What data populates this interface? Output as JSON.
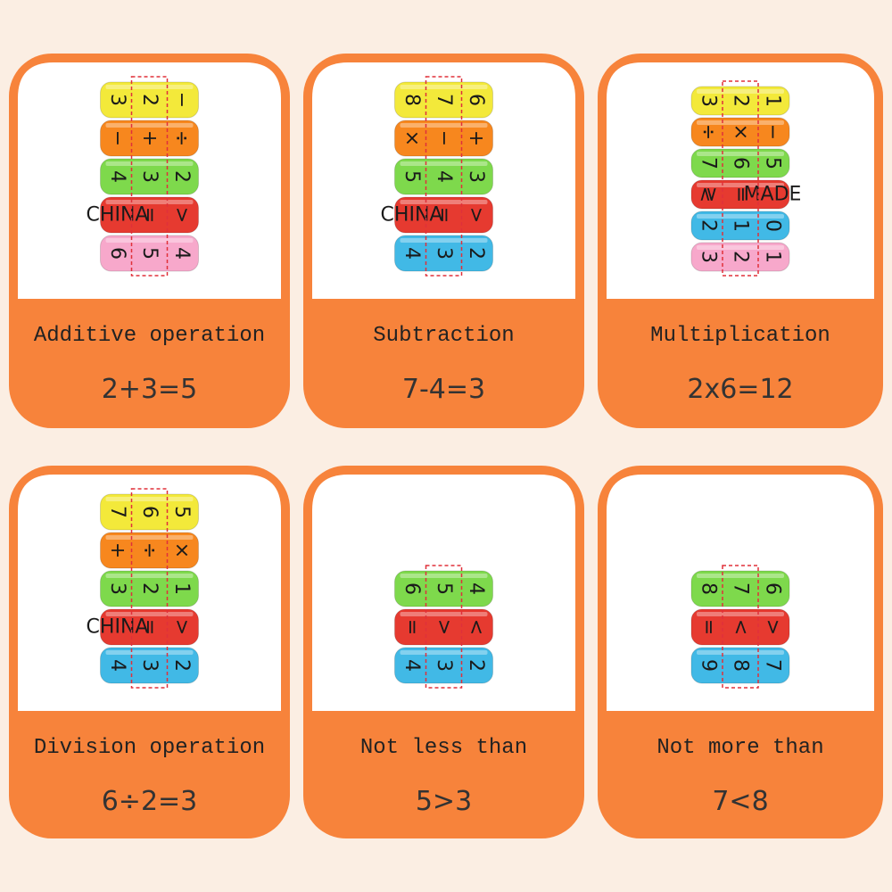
{
  "cards": [
    {
      "label": "Additive operation",
      "equation": "2+3=5",
      "rings": [
        {
          "color": "#f3e93a",
          "symbols": [
            "3",
            "2",
            "−"
          ]
        },
        {
          "color": "#f7871e",
          "symbols": [
            "−",
            "+",
            "÷"
          ]
        },
        {
          "color": "#7ed94c",
          "symbols": [
            "4",
            "3",
            "2"
          ]
        },
        {
          "color": "#e63a30",
          "symbols": [
            "CHINA",
            "=",
            ">"
          ]
        },
        {
          "color": "#f7a8cb",
          "symbols": [
            "6",
            "5",
            "4"
          ]
        }
      ]
    },
    {
      "label": "Subtraction",
      "equation": "7-4=3",
      "rings": [
        {
          "color": "#f3e93a",
          "symbols": [
            "8",
            "7",
            "6"
          ]
        },
        {
          "color": "#f7871e",
          "symbols": [
            "×",
            "−",
            "+"
          ]
        },
        {
          "color": "#7ed94c",
          "symbols": [
            "5",
            "4",
            "3"
          ]
        },
        {
          "color": "#e63a30",
          "symbols": [
            "CHINA",
            "=",
            ">"
          ]
        },
        {
          "color": "#41b9e6",
          "symbols": [
            "4",
            "3",
            "2"
          ]
        }
      ]
    },
    {
      "label": "Multiplication",
      "equation": "2x6=12",
      "rings": [
        {
          "color": "#f3e93a",
          "symbols": [
            "3",
            "2",
            "1"
          ]
        },
        {
          "color": "#f7871e",
          "symbols": [
            "÷",
            "×",
            "−"
          ]
        },
        {
          "color": "#7ed94c",
          "symbols": [
            "7",
            "6",
            "5"
          ]
        },
        {
          "color": "#e63a30",
          "symbols": [
            "≷",
            "=",
            "MADE"
          ]
        },
        {
          "color": "#41b9e6",
          "symbols": [
            "2",
            "1",
            "0"
          ]
        },
        {
          "color": "#f7a8cb",
          "symbols": [
            "3",
            "2",
            "1"
          ]
        }
      ]
    },
    {
      "label": "Division operation",
      "equation": "6÷2=3",
      "rings": [
        {
          "color": "#f3e93a",
          "symbols": [
            "7",
            "6",
            "5"
          ]
        },
        {
          "color": "#f7871e",
          "symbols": [
            "+",
            "÷",
            "×"
          ]
        },
        {
          "color": "#7ed94c",
          "symbols": [
            "3",
            "2",
            "1"
          ]
        },
        {
          "color": "#e63a30",
          "symbols": [
            "CHINA",
            "=",
            ">"
          ]
        },
        {
          "color": "#41b9e6",
          "symbols": [
            "4",
            "3",
            "2"
          ]
        }
      ]
    },
    {
      "label": "Not less than",
      "equation": "5>3",
      "rings": [
        {
          "color": "#7ed94c",
          "symbols": [
            "6",
            "5",
            "4"
          ]
        },
        {
          "color": "#e63a30",
          "symbols": [
            "=",
            ">",
            "<"
          ]
        },
        {
          "color": "#41b9e6",
          "symbols": [
            "4",
            "3",
            "2"
          ]
        }
      ]
    },
    {
      "label": "Not more than",
      "equation": "7<8",
      "rings": [
        {
          "color": "#7ed94c",
          "symbols": [
            "8",
            "7",
            "6"
          ]
        },
        {
          "color": "#e63a30",
          "symbols": [
            "=",
            "<",
            ">"
          ]
        },
        {
          "color": "#41b9e6",
          "symbols": [
            "9",
            "8",
            "7"
          ]
        }
      ]
    }
  ]
}
